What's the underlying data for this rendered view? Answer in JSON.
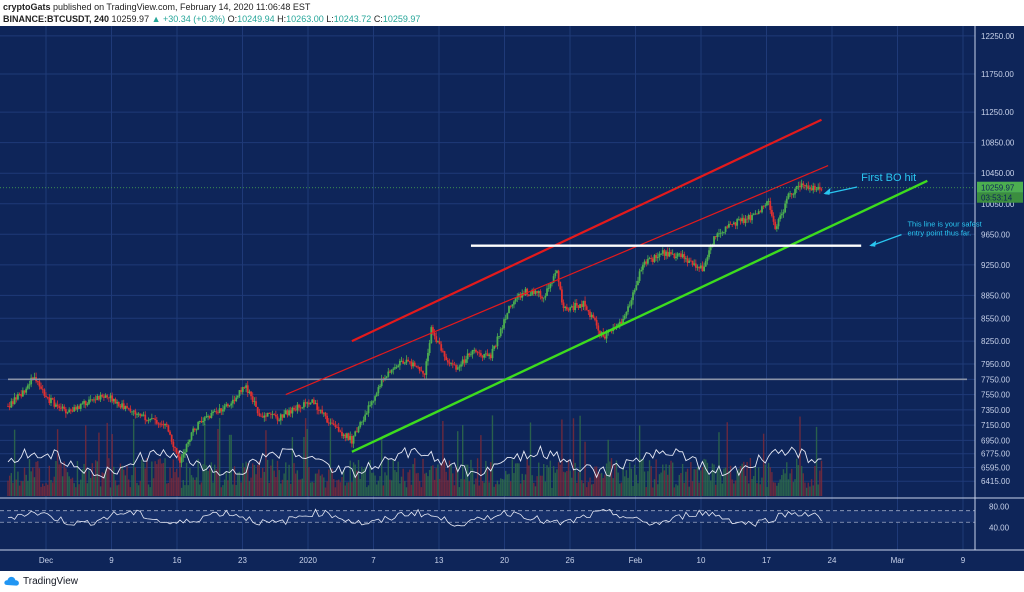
{
  "header": {
    "author": "cryptoGats",
    "published_text": "published on TradingView.com, February 14, 2020 11:06:48 EST",
    "symbol": "BINANCE:BTCUSDT, 240",
    "last": "10259.97",
    "change": "+30.34 (+0.3%)",
    "o_label": "O:",
    "o_value": "10249.94",
    "h_label": "H:",
    "h_value": "10263.00",
    "l_label": "L:",
    "l_value": "10243.72",
    "c_label": "C:",
    "c_value": "10259.97"
  },
  "footer": {
    "brand": "TradingView"
  },
  "colors": {
    "background": "#0e2559",
    "grid": "#1f3a78",
    "candle_up": "#4caf50",
    "candle_down": "#e03030",
    "channel_red": "#e31a1c",
    "support_green": "#3ddc1e",
    "level_white": "#ffffff",
    "annotation_cyan": "#29c6f0",
    "price_badge": "#4caf50"
  },
  "chart_data": {
    "type": "candlestick",
    "symbol": "BINANCE:BTCUSDT",
    "timeframe": "240",
    "ylim": [
      6300,
      12300
    ],
    "price_ticks": [
      "12250.00",
      "11750.00",
      "11250.00",
      "10850.00",
      "10450.00",
      "10050.00",
      "9650.00",
      "9250.00",
      "8850.00",
      "8550.00",
      "8250.00",
      "7950.00",
      "7750.00",
      "7550.00",
      "7350.00",
      "7150.00",
      "6950.00",
      "6775.00",
      "6595.00",
      "6415.00"
    ],
    "x_ticks": [
      "Dec",
      "9",
      "16",
      "23",
      "2020",
      "7",
      "13",
      "20",
      "26",
      "Feb",
      "10",
      "17",
      "24",
      "Mar",
      "9"
    ],
    "last_price_label": "10259.97",
    "countdown_label": "03:53:14",
    "series": [
      {
        "name": "BTCUSDT price path (approx.)",
        "points": [
          [
            0,
            7400
          ],
          [
            2,
            7550
          ],
          [
            4,
            7800
          ],
          [
            6,
            7500
          ],
          [
            9,
            7300
          ],
          [
            12,
            7450
          ],
          [
            15,
            7550
          ],
          [
            18,
            7350
          ],
          [
            21,
            7250
          ],
          [
            24,
            7150
          ],
          [
            26,
            6650
          ],
          [
            28,
            7100
          ],
          [
            30,
            7250
          ],
          [
            33,
            7400
          ],
          [
            36,
            7650
          ],
          [
            38,
            7300
          ],
          [
            41,
            7250
          ],
          [
            44,
            7400
          ],
          [
            46,
            7450
          ],
          [
            49,
            7150
          ],
          [
            52,
            6950
          ],
          [
            54,
            7300
          ],
          [
            57,
            7800
          ],
          [
            60,
            8000
          ],
          [
            63,
            7850
          ],
          [
            64,
            8400
          ],
          [
            66,
            8050
          ],
          [
            68,
            7900
          ],
          [
            70,
            8100
          ],
          [
            73,
            8050
          ],
          [
            76,
            8750
          ],
          [
            78,
            8900
          ],
          [
            81,
            8850
          ],
          [
            83,
            9150
          ],
          [
            84,
            8650
          ],
          [
            87,
            8750
          ],
          [
            90,
            8300
          ],
          [
            93,
            8500
          ],
          [
            96,
            9250
          ],
          [
            99,
            9400
          ],
          [
            102,
            9350
          ],
          [
            105,
            9200
          ],
          [
            107,
            9650
          ],
          [
            110,
            9800
          ],
          [
            113,
            9900
          ],
          [
            115,
            10100
          ],
          [
            116,
            9700
          ],
          [
            118,
            10150
          ],
          [
            120,
            10300
          ],
          [
            122,
            10250
          ],
          [
            123,
            10259.97
          ]
        ]
      }
    ],
    "channel_upper_red": {
      "from": [
        52,
        8250
      ],
      "to": [
        123,
        11150
      ]
    },
    "channel_mid_red": {
      "from": [
        42,
        7550
      ],
      "to": [
        124,
        10550
      ]
    },
    "support_green": {
      "from": [
        52,
        6800
      ],
      "to": [
        139,
        10350
      ]
    },
    "resistance_white": {
      "from": [
        70,
        9500
      ],
      "to": [
        129,
        9500
      ],
      "value": 9500
    },
    "range_gray": {
      "from": [
        0,
        7750
      ],
      "to": [
        145,
        7750
      ],
      "value": 7750
    },
    "rsi_ticks": [
      "80.00",
      "40.00"
    ],
    "annotations": [
      {
        "text": "First BO hit",
        "at": [
          129,
          10400
        ]
      },
      {
        "text": "This line is your safest entry point thus far.",
        "at": [
          136,
          9750
        ]
      }
    ],
    "title": "BINANCE:BTCUSDT, 240",
    "xlabel": "",
    "ylabel": ""
  }
}
